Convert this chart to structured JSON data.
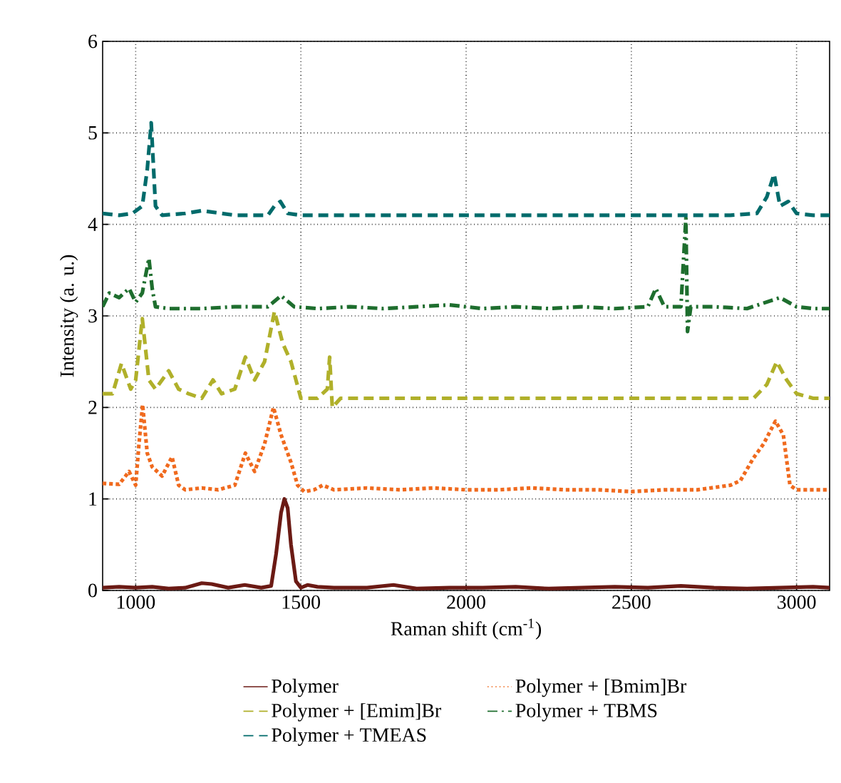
{
  "chart_data": {
    "type": "line",
    "xlabel": "Raman shift (cm$^{-1}$)",
    "ylabel": "Intensity (a. u.)",
    "xlim": [
      900,
      3100
    ],
    "ylim": [
      0,
      6
    ],
    "xticks": [
      1000,
      1500,
      2000,
      2500,
      3000
    ],
    "yticks": [
      0,
      1,
      2,
      3,
      4,
      5,
      6
    ],
    "grid": true,
    "legend": "bottom",
    "series": [
      {
        "name": "Polymer",
        "color": "#6b1a14",
        "line_style": "solid",
        "x": [
          900,
          950,
          1000,
          1050,
          1100,
          1150,
          1200,
          1230,
          1280,
          1330,
          1380,
          1410,
          1425,
          1440,
          1450,
          1460,
          1470,
          1485,
          1500,
          1520,
          1550,
          1600,
          1700,
          1780,
          1850,
          1950,
          2050,
          2150,
          2250,
          2350,
          2450,
          2550,
          2650,
          2750,
          2850,
          2950,
          3050,
          3100
        ],
        "values": [
          0.03,
          0.04,
          0.03,
          0.04,
          0.02,
          0.03,
          0.08,
          0.07,
          0.03,
          0.06,
          0.03,
          0.05,
          0.4,
          0.85,
          1.0,
          0.9,
          0.5,
          0.1,
          0.03,
          0.06,
          0.04,
          0.03,
          0.03,
          0.06,
          0.02,
          0.03,
          0.03,
          0.04,
          0.02,
          0.03,
          0.04,
          0.03,
          0.05,
          0.03,
          0.02,
          0.03,
          0.04,
          0.03
        ]
      },
      {
        "name": "Polymer + [Bmim]Br",
        "color": "#f06a1e",
        "line_style": "dotted",
        "x": [
          900,
          950,
          980,
          1000,
          1010,
          1021,
          1035,
          1050,
          1080,
          1110,
          1130,
          1150,
          1200,
          1250,
          1300,
          1332,
          1360,
          1390,
          1417,
          1440,
          1470,
          1490,
          1510,
          1540,
          1566,
          1600,
          1700,
          1800,
          1900,
          2000,
          2100,
          2200,
          2300,
          2400,
          2500,
          2600,
          2700,
          2800,
          2830,
          2870,
          2900,
          2936,
          2960,
          2980,
          3000,
          3050,
          3100
        ],
        "values": [
          1.17,
          1.16,
          1.3,
          1.15,
          1.6,
          2.03,
          1.5,
          1.35,
          1.25,
          1.46,
          1.15,
          1.1,
          1.12,
          1.1,
          1.15,
          1.5,
          1.3,
          1.6,
          2.0,
          1.7,
          1.4,
          1.15,
          1.08,
          1.1,
          1.15,
          1.1,
          1.12,
          1.1,
          1.12,
          1.1,
          1.1,
          1.12,
          1.1,
          1.1,
          1.08,
          1.1,
          1.1,
          1.15,
          1.2,
          1.45,
          1.6,
          1.85,
          1.7,
          1.15,
          1.1,
          1.1,
          1.1
        ]
      },
      {
        "name": "Polymer + [Emim]Br",
        "color": "#b0b02a",
        "line_style": "dashed",
        "x": [
          900,
          930,
          957,
          985,
          1000,
          1020,
          1040,
          1060,
          1100,
          1130,
          1160,
          1200,
          1234,
          1260,
          1300,
          1332,
          1360,
          1390,
          1420,
          1445,
          1470,
          1500,
          1550,
          1580,
          1587,
          1595,
          1620,
          1700,
          1800,
          1900,
          2000,
          2100,
          2200,
          2300,
          2400,
          2500,
          2600,
          2700,
          2800,
          2870,
          2910,
          2940,
          2970,
          3000,
          3050,
          3100
        ],
        "values": [
          2.15,
          2.15,
          2.48,
          2.2,
          2.3,
          2.97,
          2.3,
          2.2,
          2.4,
          2.2,
          2.15,
          2.1,
          2.3,
          2.15,
          2.2,
          2.55,
          2.3,
          2.5,
          3.05,
          2.7,
          2.5,
          2.1,
          2.1,
          2.2,
          2.55,
          2.0,
          2.1,
          2.1,
          2.1,
          2.1,
          2.1,
          2.1,
          2.1,
          2.1,
          2.1,
          2.1,
          2.1,
          2.1,
          2.1,
          2.1,
          2.25,
          2.5,
          2.3,
          2.15,
          2.1,
          2.1
        ]
      },
      {
        "name": "Polymer + TBMS",
        "color": "#1e6e2e",
        "line_style": "dashdot",
        "x": [
          900,
          920,
          950,
          980,
          1000,
          1020,
          1040,
          1050,
          1060,
          1100,
          1200,
          1300,
          1400,
          1440,
          1480,
          1550,
          1650,
          1750,
          1850,
          1950,
          2050,
          2150,
          2250,
          2350,
          2450,
          2550,
          2574,
          2600,
          2650,
          2665,
          2670,
          2680,
          2750,
          2850,
          2950,
          3000,
          3050,
          3100
        ],
        "values": [
          3.1,
          3.25,
          3.2,
          3.3,
          3.15,
          3.25,
          3.63,
          3.3,
          3.1,
          3.08,
          3.08,
          3.1,
          3.1,
          3.22,
          3.1,
          3.08,
          3.1,
          3.08,
          3.1,
          3.12,
          3.08,
          3.1,
          3.08,
          3.1,
          3.08,
          3.1,
          3.3,
          3.1,
          3.1,
          4.07,
          2.83,
          3.1,
          3.1,
          3.08,
          3.2,
          3.1,
          3.08,
          3.08
        ]
      },
      {
        "name": "Polymer + TMEAS",
        "color": "#006b6b",
        "line_style": "dashed",
        "x": [
          900,
          950,
          990,
          1020,
          1035,
          1047,
          1060,
          1080,
          1150,
          1200,
          1300,
          1400,
          1420,
          1438,
          1460,
          1500,
          1600,
          1700,
          1800,
          1900,
          2000,
          2100,
          2200,
          2300,
          2400,
          2500,
          2600,
          2700,
          2800,
          2880,
          2910,
          2932,
          2950,
          2975,
          3000,
          3050,
          3100
        ],
        "values": [
          4.12,
          4.1,
          4.12,
          4.2,
          4.6,
          5.11,
          4.2,
          4.1,
          4.12,
          4.15,
          4.1,
          4.1,
          4.2,
          4.25,
          4.12,
          4.1,
          4.1,
          4.1,
          4.1,
          4.1,
          4.1,
          4.1,
          4.1,
          4.1,
          4.1,
          4.1,
          4.1,
          4.1,
          4.1,
          4.12,
          4.3,
          4.55,
          4.2,
          4.25,
          4.12,
          4.1,
          4.1
        ]
      }
    ]
  }
}
